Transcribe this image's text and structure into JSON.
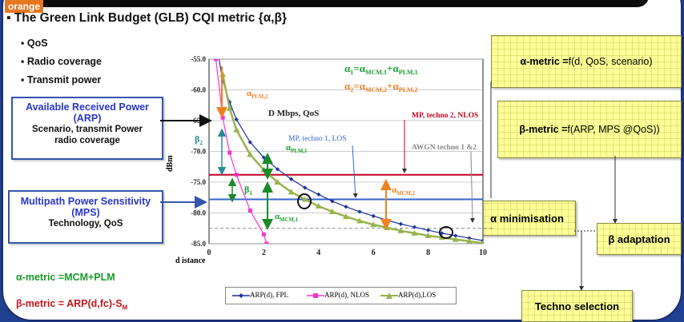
{
  "header": {
    "tag": "orange",
    "title": "▪ The Green Link Budget (GLB) CQI metric  {α,β}"
  },
  "bullets": [
    "▪ QoS",
    "▪ Radio coverage",
    "▪ Transmit power"
  ],
  "boxes": {
    "arp_title": "Available Received Power",
    "arp_abbr": "(ARP)",
    "arp_desc1": "Scenario, transmit Power",
    "arp_desc2": "radio coverage",
    "mps_title": "Multipath Power Sensitivity",
    "mps_abbr": "(MPS)",
    "mps_desc": "Technology, QoS",
    "alpha_metric_label": "α-metric =",
    "alpha_metric_fn": " f(d, QoS, scenario)",
    "beta_metric_label": "β-metric =",
    "beta_metric_fn": " f(ARP, MPS @QoS))",
    "alpha_min": "α minimisation",
    "beta_adapt": "β adaptation",
    "techno_sel": "Techno  selection"
  },
  "formulas": {
    "alpha_def": "α-metric =MCM+PLM",
    "beta_def": "β-metric = ARP(d,fc)-S",
    "beta_def_sub": "M"
  },
  "chart_data": {
    "type": "line",
    "xlabel": "d istance",
    "ylabel": "dBm",
    "xlim": [
      0,
      10
    ],
    "ylim": [
      -85,
      -55
    ],
    "x_ticks": [
      "0",
      "2",
      "4",
      "6",
      "8",
      "10"
    ],
    "y_ticks": [
      "-55.0",
      "-60.0",
      "-65.0",
      "-70.0",
      "-75.0",
      "-80.0",
      "-85.0"
    ],
    "series": [
      {
        "name": "ARP(d), FPL",
        "color": "#1f2f9f",
        "x": [
          0.25,
          0.5,
          0.75,
          1,
          1.5,
          2,
          2.5,
          3,
          3.5,
          4,
          4.5,
          5,
          5.5,
          6,
          6.5,
          7,
          7.5,
          8,
          8.5,
          9,
          9.5,
          10
        ],
        "y": [
          -52,
          -58.5,
          -62,
          -64.8,
          -68.5,
          -71.0,
          -72.9,
          -74.5,
          -75.9,
          -77.0,
          -78.1,
          -79.0,
          -79.8,
          -80.5,
          -81.2,
          -81.8,
          -82.3,
          -82.8,
          -83.3,
          -83.7,
          -84.1,
          -84.5
        ]
      },
      {
        "name": "ARP(d), NLOS",
        "color": "#ff33cc",
        "x": [
          0.25,
          0.5,
          0.75,
          1,
          1.5,
          2,
          2.1
        ],
        "y": [
          -55,
          -64.5,
          -70.2,
          -73.8,
          -79.6,
          -83.5,
          -85
        ]
      },
      {
        "name": "ARP(d),LOS",
        "color": "#99b34d",
        "x": [
          0.5,
          0.75,
          1,
          1.5,
          2,
          2.5,
          3,
          3.5,
          4,
          4.5,
          5,
          5.5,
          6,
          6.5,
          7,
          7.5,
          8,
          8.5,
          9,
          9.5,
          10
        ],
        "y": [
          -57.5,
          -63,
          -66.5,
          -70.5,
          -73.0,
          -75.0,
          -76.6,
          -77.8,
          -78.9,
          -79.8,
          -80.6,
          -81.3,
          -81.9,
          -82.4,
          -82.9,
          -83.3,
          -83.7,
          -84.0,
          -84.3,
          -84.6,
          -84.9
        ]
      }
    ],
    "hlines": [
      {
        "label": "MP, techno 2, NLOS",
        "y": -73.8,
        "color": "#c0001f"
      },
      {
        "label": "MP, techno 1, LOS",
        "y": -77.8,
        "color": "#3366cc"
      },
      {
        "label": "AWGN techno 1 &2",
        "y": -82.5,
        "color": "#8a8a8a"
      }
    ],
    "annotations": {
      "dmbps": "D Mbps, QoS",
      "a1_formula": "α",
      "a1_sub": "1",
      "a1_rhs": "=α",
      "a1_rhs_sub": "MCM,1",
      "a1_plus": "+α",
      "a1_plus_sub": "PLM,1",
      "a2_formula": "α",
      "a2_sub": "2",
      "a2_rhs": "=α",
      "a2_rhs_sub": "MCM,2",
      "a2_plus": "+α",
      "a2_plus_sub": "PLM,2",
      "plm2": "α",
      "plm2_sub": "PLM,2",
      "plm1": "α",
      "plm1_sub": "PLM,1",
      "mcm1": "α",
      "mcm1_sub": "MCM,1",
      "mcm2": "α",
      "mcm2_sub": "MCM,2",
      "beta1": "β",
      "beta1_sub": "1",
      "beta2": "β",
      "beta2_sub": "2"
    }
  }
}
